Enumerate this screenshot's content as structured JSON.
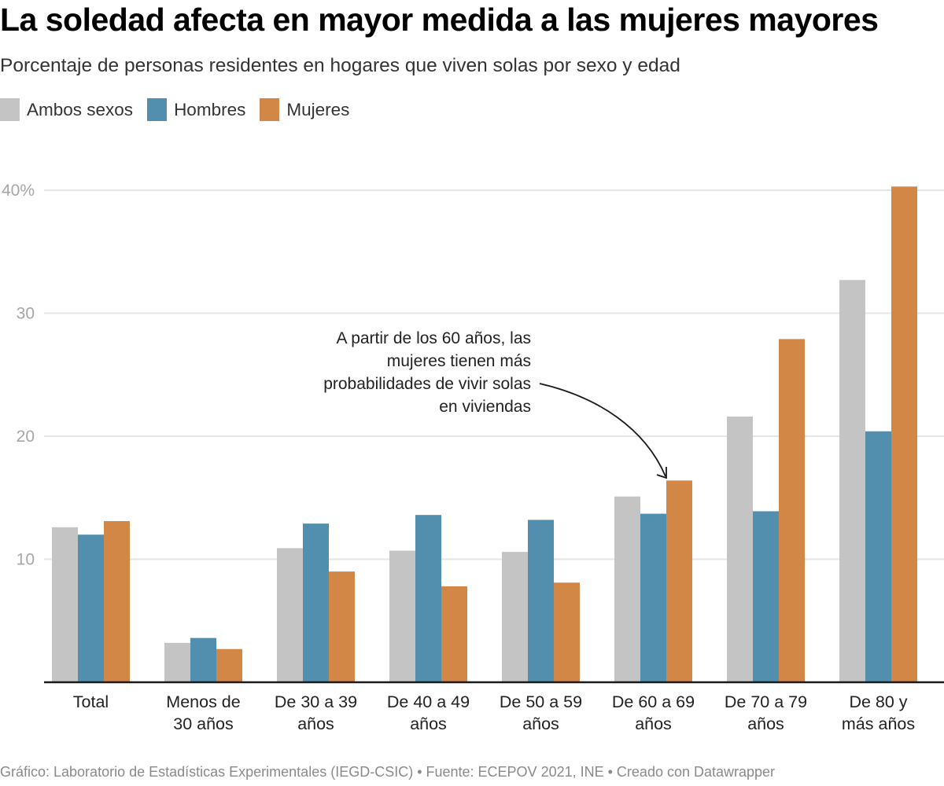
{
  "header": {
    "title": "La soledad afecta en mayor medida a las mujeres mayores",
    "subtitle": "Porcentaje de personas residentes en hogares que viven solas por sexo y edad"
  },
  "legend": [
    {
      "label": "Ambos sexos",
      "color": "#c4c4c4"
    },
    {
      "label": "Hombres",
      "color": "#528fae"
    },
    {
      "label": "Mujeres",
      "color": "#d38746"
    }
  ],
  "chart_data": {
    "type": "bar",
    "title": "La soledad afecta en mayor medida a las mujeres mayores",
    "subtitle": "Porcentaje de personas residentes en hogares que viven solas por sexo y edad",
    "xlabel": "",
    "ylabel": "",
    "ylim": [
      0,
      40
    ],
    "yticks": [
      10,
      20,
      30,
      40
    ],
    "ytick_labels": [
      "10",
      "20",
      "30",
      "40%"
    ],
    "grid": true,
    "legend_position": "top-left",
    "categories": [
      [
        "Total"
      ],
      [
        "Menos de",
        "30 años"
      ],
      [
        "De 30 a 39",
        "años"
      ],
      [
        "De 40 a 49",
        "años"
      ],
      [
        "De 50 a 59",
        "años"
      ],
      [
        "De 60 a 69",
        "años"
      ],
      [
        "De 70 a 79",
        "años"
      ],
      [
        "De 80 y",
        "más años"
      ]
    ],
    "series": [
      {
        "name": "Ambos sexos",
        "color": "#c4c4c4",
        "values": [
          12.6,
          3.2,
          10.9,
          10.7,
          10.6,
          15.1,
          21.6,
          32.7
        ]
      },
      {
        "name": "Hombres",
        "color": "#528fae",
        "values": [
          12.0,
          3.6,
          12.9,
          13.6,
          13.2,
          13.7,
          13.9,
          20.4
        ]
      },
      {
        "name": "Mujeres",
        "color": "#d38746",
        "values": [
          13.1,
          2.7,
          9.0,
          7.8,
          8.1,
          16.4,
          27.9,
          40.3
        ]
      }
    ],
    "annotation": {
      "lines": [
        "A partir de los 60 años, las",
        "mujeres tienen más",
        "probabilidades de vivir solas",
        "en viviendas"
      ],
      "points_to": "De 60 a 69 años"
    }
  },
  "footer": {
    "text": "Gráfico: Laboratorio de Estadísticas Experimentales (IEGD-CSIC) • Fuente: ECEPOV 2021, INE • Creado con Datawrapper"
  }
}
